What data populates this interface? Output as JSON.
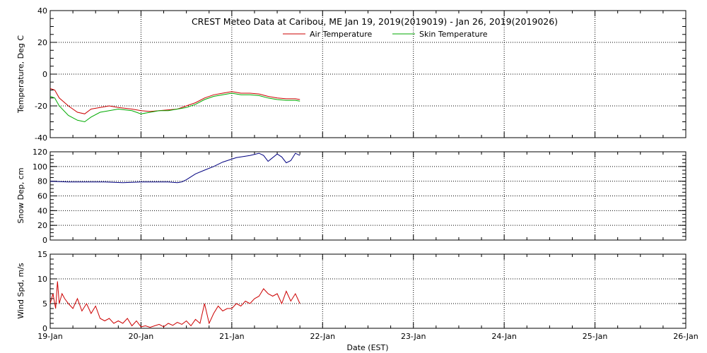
{
  "title": "CREST Meteo Data at Caribou, ME   Jan 19, 2019(2019019) - Jan 26, 2019(2019026)",
  "xlabel": "Date (EST)",
  "x_ticks": [
    "19-Jan",
    "20-Jan",
    "21-Jan",
    "22-Jan",
    "23-Jan",
    "24-Jan",
    "25-Jan",
    "26-Jan"
  ],
  "colors": {
    "air": "#cc0000",
    "skin": "#00aa00",
    "snow": "#000080",
    "wind": "#cc0000"
  },
  "chart_data": [
    {
      "type": "line",
      "ylabel": "Temperature, Deg C",
      "ylim": [
        -40,
        40
      ],
      "y_ticks": [
        -40,
        -20,
        0,
        20,
        40
      ],
      "xlim": [
        0,
        7
      ],
      "grid": true,
      "legend": "top-center",
      "series": [
        {
          "name": "Air Temperature",
          "x": [
            0,
            0.05,
            0.1,
            0.2,
            0.3,
            0.38,
            0.45,
            0.55,
            0.65,
            0.75,
            0.9,
            1.0,
            1.1,
            1.2,
            1.3,
            1.4,
            1.5,
            1.6,
            1.7,
            1.8,
            1.9,
            2.0,
            2.1,
            2.2,
            2.3,
            2.4,
            2.5,
            2.6,
            2.7,
            2.75
          ],
          "y": [
            -9,
            -10,
            -15,
            -20,
            -24,
            -25,
            -22,
            -21,
            -20,
            -21,
            -22,
            -23,
            -23.5,
            -23,
            -22.5,
            -22,
            -20,
            -18,
            -15,
            -13,
            -12,
            -11,
            -12,
            -12,
            -12.5,
            -14,
            -15,
            -15.5,
            -15.5,
            -16
          ]
        },
        {
          "name": "Skin Temperature",
          "x": [
            0,
            0.05,
            0.1,
            0.2,
            0.3,
            0.38,
            0.45,
            0.55,
            0.65,
            0.75,
            0.9,
            1.0,
            1.1,
            1.2,
            1.3,
            1.4,
            1.5,
            1.6,
            1.7,
            1.8,
            1.9,
            2.0,
            2.1,
            2.2,
            2.3,
            2.4,
            2.5,
            2.6,
            2.7,
            2.75
          ],
          "y": [
            -14,
            -15,
            -20,
            -26,
            -29,
            -30,
            -27,
            -24,
            -23,
            -22,
            -23,
            -25,
            -24,
            -23,
            -23,
            -22,
            -21,
            -19,
            -16,
            -14,
            -13,
            -12,
            -13,
            -13,
            -13.5,
            -15,
            -16,
            -16.5,
            -16.5,
            -17
          ]
        }
      ]
    },
    {
      "type": "line",
      "ylabel": "Snow Dep, cm",
      "ylim": [
        0,
        120
      ],
      "y_ticks": [
        0,
        20,
        40,
        60,
        80,
        100,
        120
      ],
      "xlim": [
        0,
        7
      ],
      "grid": true,
      "series": [
        {
          "name": "",
          "x": [
            0,
            0.2,
            0.4,
            0.6,
            0.8,
            1.0,
            1.2,
            1.3,
            1.4,
            1.45,
            1.5,
            1.6,
            1.7,
            1.8,
            1.85,
            1.9,
            1.95,
            2.0,
            2.05,
            2.1,
            2.2,
            2.3,
            2.35,
            2.4,
            2.5,
            2.55,
            2.6,
            2.65,
            2.7,
            2.75
          ],
          "y": [
            80,
            79,
            79,
            79,
            78,
            79,
            79,
            79,
            78,
            79,
            82,
            90,
            95,
            100,
            103,
            106,
            108,
            110,
            112,
            113,
            115,
            118,
            115,
            107,
            117,
            113,
            105,
            108,
            118,
            115
          ]
        }
      ]
    },
    {
      "type": "line",
      "ylabel": "Wind Spd, m/s",
      "ylim": [
        0,
        15
      ],
      "y_ticks": [
        0,
        5,
        10,
        15
      ],
      "xlim": [
        0,
        7
      ],
      "grid": true,
      "series": [
        {
          "name": "",
          "x": [
            0,
            0.03,
            0.06,
            0.08,
            0.1,
            0.13,
            0.16,
            0.2,
            0.25,
            0.3,
            0.35,
            0.4,
            0.45,
            0.5,
            0.55,
            0.6,
            0.65,
            0.7,
            0.75,
            0.8,
            0.85,
            0.9,
            0.95,
            1.0,
            1.05,
            1.1,
            1.15,
            1.2,
            1.25,
            1.3,
            1.35,
            1.4,
            1.45,
            1.5,
            1.55,
            1.6,
            1.65,
            1.7,
            1.75,
            1.8,
            1.85,
            1.9,
            1.95,
            2.0,
            2.05,
            2.1,
            2.15,
            2.2,
            2.25,
            2.3,
            2.35,
            2.4,
            2.45,
            2.5,
            2.55,
            2.6,
            2.65,
            2.7,
            2.75
          ],
          "y": [
            5,
            7,
            4,
            9.5,
            5,
            7,
            6,
            5,
            4,
            6,
            3.5,
            5,
            3,
            4.5,
            2,
            1.5,
            2,
            1,
            1.5,
            1,
            2,
            0.5,
            1.5,
            0.3,
            0.5,
            0.2,
            0.5,
            0.8,
            0.3,
            1,
            0.6,
            1.2,
            0.8,
            1.5,
            0.5,
            1.8,
            1,
            5,
            1,
            3,
            4.5,
            3.5,
            4,
            4,
            5,
            4.5,
            5.5,
            5,
            6,
            6.5,
            8,
            7,
            6.5,
            7,
            5,
            7.5,
            5.5,
            7,
            5
          ]
        }
      ]
    }
  ]
}
